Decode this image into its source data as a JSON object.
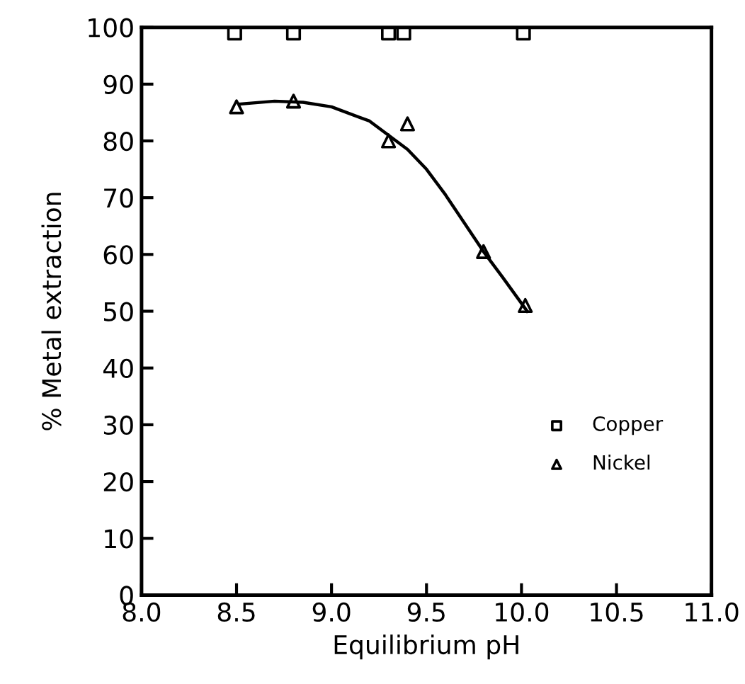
{
  "chart_data": {
    "type": "scatter",
    "xlabel": "Equilibrium pH",
    "ylabel": "% Metal extraction",
    "xlim": [
      8.0,
      11.0
    ],
    "xticks": [
      {
        "value": 8.0,
        "label": "8.0"
      },
      {
        "value": 8.5,
        "label": "8.5"
      },
      {
        "value": 9.0,
        "label": "9.0"
      },
      {
        "value": 9.5,
        "label": "9.5"
      },
      {
        "value": 10.0,
        "label": "10.0"
      },
      {
        "value": 10.5,
        "label": "10.5"
      },
      {
        "value": 11.0,
        "label": "11.0"
      }
    ],
    "ylim": [
      0,
      100
    ],
    "yticks": [
      0,
      10,
      20,
      30,
      40,
      50,
      60,
      70,
      80,
      90,
      100
    ],
    "grid": false,
    "legend": "bottom right",
    "series": [
      {
        "name": "Copper",
        "color": "#000000",
        "marker": "square",
        "x": [
          8.49,
          8.8,
          9.3,
          9.38,
          10.01
        ],
        "values": [
          99,
          99,
          99,
          99,
          99
        ]
      },
      {
        "name": "Nickel",
        "color": "#000000",
        "marker": "triangle",
        "x": [
          8.5,
          8.8,
          9.3,
          9.4,
          9.8,
          10.02
        ],
        "values": [
          86,
          87,
          80,
          83,
          60.5,
          51
        ]
      },
      {
        "type": "line",
        "color": "#000000",
        "marker": "none",
        "x": [
          8.52,
          8.7,
          8.85,
          9.0,
          9.2,
          9.4,
          9.5,
          9.6,
          9.7,
          9.8,
          9.9,
          10.03
        ],
        "values": [
          86.5,
          87,
          86.8,
          86,
          83.5,
          78.5,
          75,
          70.5,
          65.5,
          60.5,
          56,
          50
        ]
      }
    ]
  }
}
